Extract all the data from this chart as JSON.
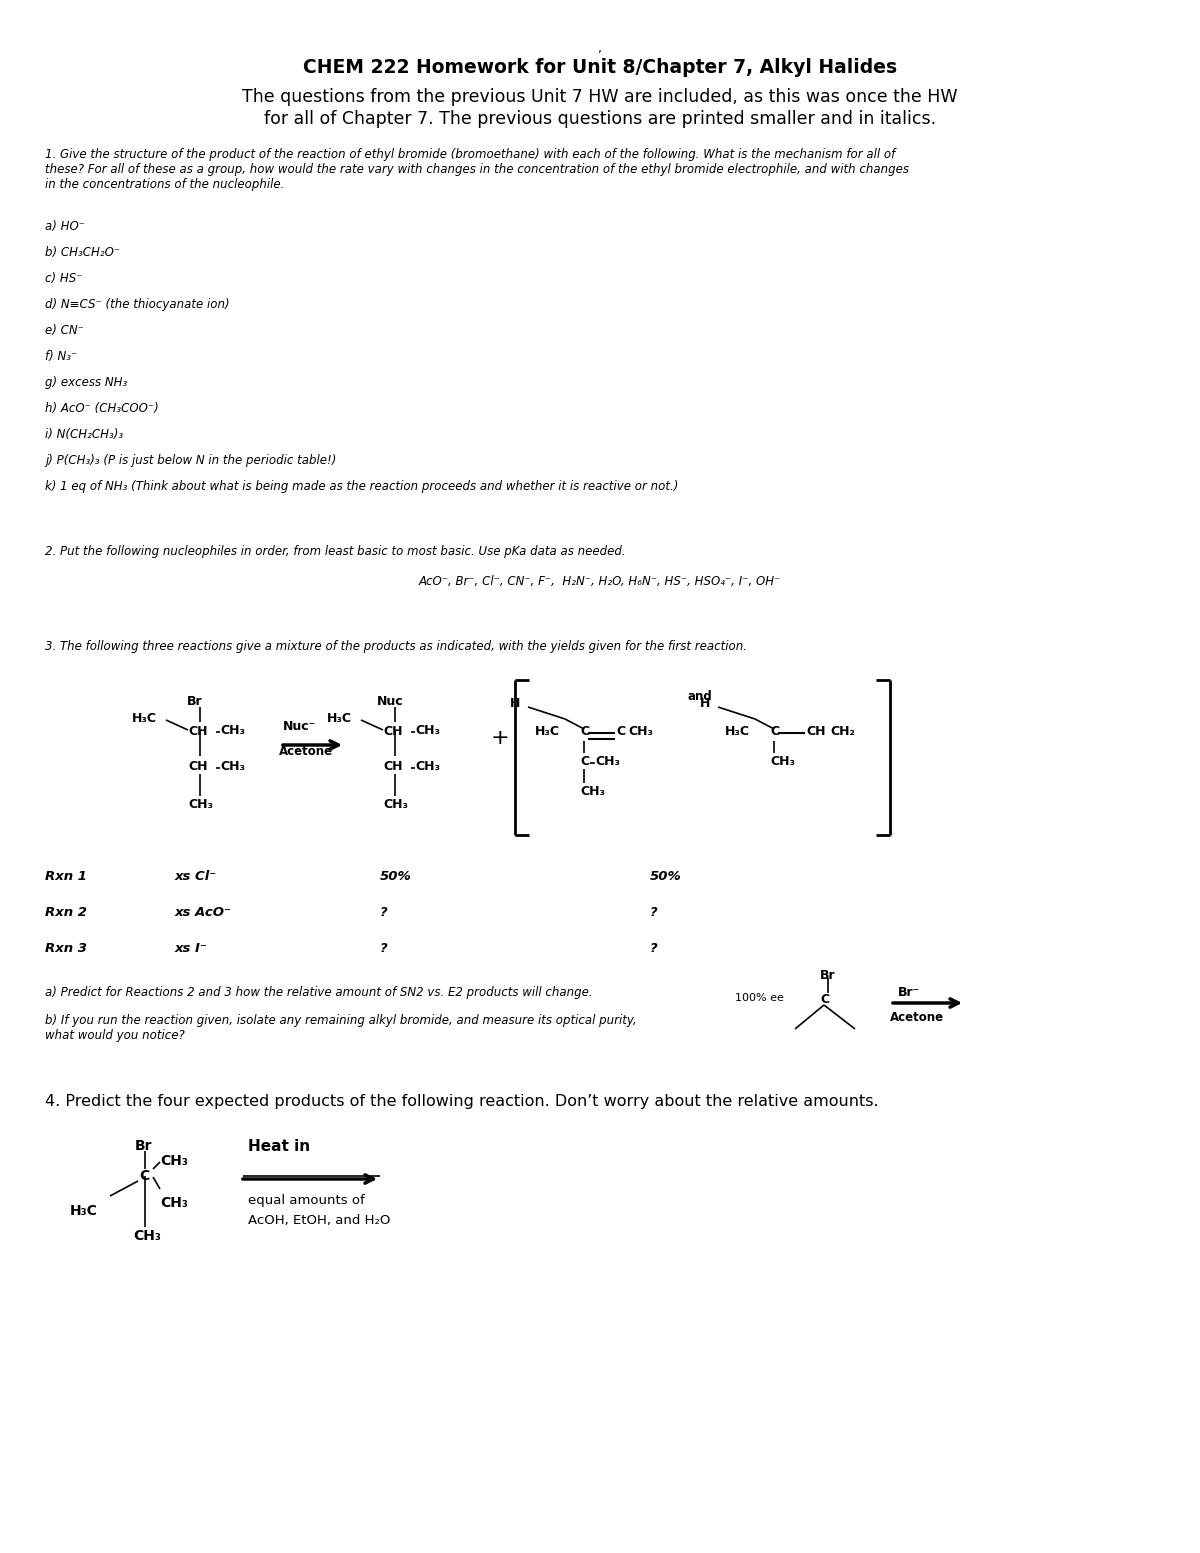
{
  "bg_color": "#ffffff",
  "title_comma": ",",
  "title_bold": "CHEM 222 Homework for Unit 8/Chapter 7, Alkyl Halides",
  "subtitle1": "The questions from the previous Unit 7 HW are included, as this was once the HW",
  "subtitle2": "for all of Chapter 7. The previous questions are printed smaller and in italics.",
  "q1_intro": "1. Give the structure of the product of the reaction of ethyl bromide (bromoethane) with each of the following. What is the mechanism for all of\nthese? For all of these as a group, how would the rate vary with changes in the concentration of the ethyl bromide electrophile, and with changes\nin the concentrations of the nucleophile.",
  "q1_items": [
    "a) HO⁻",
    "b) CH₃CH₂O⁻",
    "c) HS⁻",
    "d) N≡CS⁻ (the thiocyanate ion)",
    "e) CN⁻",
    "f) N₃⁻",
    "g) excess NH₃",
    "h) AcO⁻ (CH₃COO⁻)",
    "i) N(CH₂CH₃)₃",
    "j) P(CH₃)₃ (P is just below N in the periodic table!)",
    "k) 1 eq of NH₃ (Think about what is being made as the reaction proceeds and whether it is reactive or not.)"
  ],
  "q2_intro": "2. Put the following nucleophiles in order, from least basic to most basic. Use pKa data as needed.",
  "q2_list": "AcO⁻, Br⁻, Cl⁻, CN⁻, F⁻,  H₂N⁻, H₂O, H₆N⁻, HS⁻, HSO₄⁻, I⁻, OH⁻",
  "q3_intro": "3. The following three reactions give a mixture of the products as indicated, with the yields given for the first reaction.",
  "rxn_rows": [
    [
      "Rxn 1",
      "xs Cl⁻",
      "50%",
      "50%"
    ],
    [
      "Rxn 2",
      "xs AcO⁻",
      "?",
      "?"
    ],
    [
      "Rxn 3",
      "xs I⁻",
      "?",
      "?"
    ]
  ],
  "q3a": "a) Predict for Reactions 2 and 3 how the relative amount of SN2 vs. E2 products will change.",
  "q3b": "b) If you run the reaction given, isolate any remaining alkyl bromide, and measure its optical purity,\nwhat would you notice?",
  "q4_intro": "4. Predict the four expected products of the following reaction. Don’t worry about the relative amounts.",
  "q4_cond1": "Heat in",
  "q4_cond2": "equal amounts of",
  "q4_cond3": "AcOH, EtOH, and H₂O"
}
